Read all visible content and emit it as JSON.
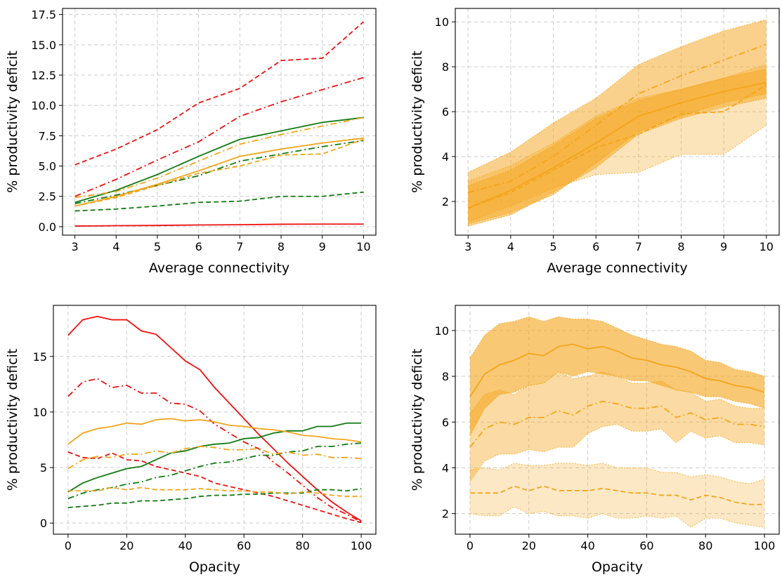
{
  "colors": {
    "red": "#ee1111",
    "green": "#117a11",
    "orange": "#f4a419"
  },
  "chart_data": [
    {
      "type": "line",
      "xlabel": "Average connectivity",
      "ylabel": "% productivity deficit",
      "xlim": [
        2.7,
        10.3
      ],
      "ylim": [
        -0.7,
        18.0
      ],
      "xticks": [
        3,
        4,
        5,
        6,
        7,
        8,
        9,
        10
      ],
      "yticks": [
        0.0,
        2.5,
        5.0,
        7.5,
        10.0,
        12.5,
        15.0,
        17.5
      ],
      "ytick_decimals": 1,
      "grid": true,
      "x": [
        3,
        4,
        5,
        6,
        7,
        8,
        9,
        10
      ],
      "series": [
        {
          "color": "red",
          "style": "dashed",
          "values": [
            5.1,
            6.4,
            8.0,
            10.2,
            11.4,
            13.7,
            13.9,
            16.9
          ]
        },
        {
          "color": "red",
          "style": "dashdot",
          "values": [
            2.5,
            3.9,
            5.5,
            7.0,
            9.1,
            10.3,
            11.3,
            12.3
          ]
        },
        {
          "color": "red",
          "style": "solid",
          "values": [
            0.05,
            0.08,
            0.1,
            0.14,
            0.16,
            0.2,
            0.21,
            0.21
          ]
        },
        {
          "color": "green",
          "style": "solid",
          "values": [
            2.0,
            3.0,
            4.3,
            5.8,
            7.2,
            7.9,
            8.6,
            9.0
          ]
        },
        {
          "color": "green",
          "style": "dashdot",
          "values": [
            1.9,
            2.6,
            3.4,
            4.2,
            5.4,
            6.0,
            6.6,
            7.1
          ]
        },
        {
          "color": "green",
          "style": "dashed",
          "values": [
            1.3,
            1.45,
            1.7,
            2.0,
            2.1,
            2.5,
            2.5,
            2.85
          ]
        },
        {
          "color": "orange",
          "style": "dashdot",
          "values": [
            2.4,
            2.9,
            4.0,
            5.4,
            6.8,
            7.6,
            8.3,
            9.0
          ]
        },
        {
          "color": "orange",
          "style": "solid",
          "values": [
            1.7,
            2.5,
            3.5,
            4.6,
            5.8,
            6.4,
            6.9,
            7.3
          ]
        },
        {
          "color": "orange",
          "style": "dashed",
          "values": [
            1.7,
            2.4,
            3.4,
            4.4,
            5.0,
            5.9,
            6.0,
            7.2
          ]
        }
      ]
    },
    {
      "type": "area",
      "xlabel": "Average connectivity",
      "ylabel": "% productivity deficit",
      "xlim": [
        2.7,
        10.3
      ],
      "ylim": [
        0.5,
        10.6
      ],
      "xticks": [
        3,
        4,
        5,
        6,
        7,
        8,
        9,
        10
      ],
      "yticks": [
        2,
        4,
        6,
        8,
        10
      ],
      "ytick_decimals": 0,
      "grid": true,
      "x": [
        3,
        4,
        5,
        6,
        7,
        8,
        9,
        10
      ],
      "bands": [
        {
          "lower": [
            0.9,
            1.4,
            2.4,
            3.5,
            5.0,
            5.7,
            6.2,
            6.6
          ],
          "upper": [
            3.3,
            4.2,
            5.5,
            6.6,
            8.1,
            8.9,
            9.6,
            10.1
          ],
          "opacity": 0.5
        },
        {
          "lower": [
            1.1,
            1.8,
            2.6,
            3.2,
            3.3,
            4.1,
            4.1,
            5.4
          ],
          "upper": [
            2.9,
            3.6,
            4.6,
            5.8,
            6.6,
            7.0,
            7.5,
            8.1
          ],
          "opacity": 0.3
        },
        {
          "lower": [
            1.0,
            1.5,
            2.3,
            3.7,
            5.1,
            5.8,
            6.4,
            6.8
          ],
          "upper": [
            2.7,
            3.4,
            4.5,
            5.7,
            6.5,
            7.0,
            7.5,
            7.9
          ],
          "opacity": 0.45
        }
      ],
      "series": [
        {
          "color": "orange",
          "style": "dashdot",
          "values": [
            2.4,
            2.9,
            4.0,
            5.4,
            6.8,
            7.6,
            8.3,
            9.0
          ]
        },
        {
          "color": "orange",
          "style": "solid",
          "values": [
            1.7,
            2.5,
            3.5,
            4.6,
            5.8,
            6.4,
            6.9,
            7.3
          ]
        },
        {
          "color": "orange",
          "style": "dashed",
          "values": [
            1.7,
            2.4,
            3.4,
            4.4,
            5.0,
            5.9,
            6.0,
            7.2
          ]
        }
      ]
    },
    {
      "type": "line",
      "xlabel": "Opacity",
      "ylabel": "% productivity deficit",
      "xlim": [
        -5,
        105
      ],
      "ylim": [
        -1.0,
        19.6
      ],
      "xticks": [
        0,
        20,
        40,
        60,
        80,
        100
      ],
      "yticks": [
        0,
        5,
        10,
        15
      ],
      "ytick_decimals": 0,
      "grid": true,
      "x": [
        0,
        5,
        10,
        15,
        20,
        25,
        30,
        35,
        40,
        45,
        50,
        55,
        60,
        65,
        70,
        75,
        80,
        85,
        90,
        95,
        100
      ],
      "series": [
        {
          "color": "red",
          "style": "solid",
          "values": [
            16.9,
            18.3,
            18.6,
            18.3,
            18.3,
            17.3,
            17.0,
            15.8,
            14.6,
            13.8,
            12.2,
            10.8,
            9.4,
            8.0,
            6.7,
            5.4,
            4.2,
            3.0,
            1.9,
            1.0,
            0.2
          ]
        },
        {
          "color": "red",
          "style": "dashdot",
          "values": [
            11.4,
            12.7,
            13.0,
            12.2,
            12.4,
            11.7,
            11.7,
            10.8,
            10.7,
            10.1,
            8.9,
            8.1,
            7.3,
            6.7,
            5.5,
            4.5,
            3.4,
            2.3,
            1.4,
            0.8,
            0.1
          ]
        },
        {
          "color": "red",
          "style": "dashed",
          "values": [
            6.4,
            5.9,
            5.8,
            6.3,
            5.7,
            5.6,
            5.1,
            4.8,
            4.5,
            4.2,
            3.6,
            3.3,
            3.0,
            2.7,
            2.4,
            2.0,
            1.6,
            1.2,
            0.8,
            0.4,
            0.05
          ]
        },
        {
          "color": "green",
          "style": "solid",
          "values": [
            2.8,
            3.6,
            4.1,
            4.5,
            4.9,
            5.1,
            5.7,
            6.3,
            6.5,
            6.9,
            7.1,
            7.2,
            7.6,
            7.7,
            8.1,
            8.3,
            8.3,
            8.7,
            8.7,
            9.0,
            9.0
          ]
        },
        {
          "color": "green",
          "style": "dashdot",
          "values": [
            2.2,
            2.7,
            3.0,
            3.2,
            3.5,
            3.7,
            4.1,
            4.3,
            4.7,
            5.1,
            5.4,
            5.5,
            5.8,
            6.1,
            6.1,
            6.4,
            6.5,
            6.9,
            6.9,
            7.1,
            7.2
          ]
        },
        {
          "color": "green",
          "style": "dashed",
          "values": [
            1.4,
            1.5,
            1.6,
            1.8,
            1.8,
            2.0,
            2.0,
            2.1,
            2.2,
            2.4,
            2.5,
            2.5,
            2.6,
            2.6,
            2.7,
            2.7,
            2.7,
            3.0,
            3.0,
            2.9,
            3.1
          ]
        },
        {
          "color": "orange",
          "style": "solid",
          "values": [
            7.1,
            8.1,
            8.5,
            8.7,
            9.0,
            8.9,
            9.3,
            9.4,
            9.2,
            9.3,
            9.1,
            8.8,
            8.7,
            8.5,
            8.4,
            8.2,
            7.9,
            7.8,
            7.6,
            7.5,
            7.3
          ]
        },
        {
          "color": "orange",
          "style": "dashdot",
          "values": [
            4.9,
            5.7,
            6.0,
            5.9,
            6.2,
            6.2,
            6.5,
            6.3,
            6.7,
            6.9,
            6.8,
            6.6,
            6.6,
            6.7,
            6.2,
            6.4,
            6.1,
            6.2,
            5.9,
            5.9,
            5.8
          ]
        },
        {
          "color": "orange",
          "style": "dashed",
          "values": [
            2.9,
            2.9,
            2.9,
            3.2,
            3.0,
            3.2,
            3.0,
            3.0,
            3.0,
            3.1,
            3.0,
            2.9,
            2.9,
            2.8,
            2.8,
            2.6,
            2.8,
            2.7,
            2.5,
            2.4,
            2.4
          ]
        }
      ]
    },
    {
      "type": "area",
      "xlabel": "Opacity",
      "ylabel": "% productivity deficit",
      "xlim": [
        -5,
        105
      ],
      "ylim": [
        1.1,
        11.1
      ],
      "xticks": [
        0,
        20,
        40,
        60,
        80,
        100
      ],
      "yticks": [
        2,
        4,
        6,
        8,
        10
      ],
      "ytick_decimals": 0,
      "grid": true,
      "x": [
        0,
        5,
        10,
        15,
        20,
        25,
        30,
        35,
        40,
        45,
        50,
        55,
        60,
        65,
        70,
        75,
        80,
        85,
        90,
        95,
        100
      ],
      "bands": [
        {
          "lower": [
            5.4,
            6.6,
            7.2,
            7.3,
            7.6,
            7.7,
            8.2,
            8.0,
            8.2,
            8.1,
            8.0,
            7.8,
            7.8,
            7.6,
            7.4,
            7.3,
            7.1,
            7.1,
            6.9,
            6.8,
            6.6
          ],
          "upper": [
            8.8,
            9.8,
            10.3,
            10.4,
            10.6,
            10.4,
            10.6,
            10.5,
            10.5,
            10.4,
            10.1,
            9.8,
            9.6,
            9.4,
            9.3,
            9.1,
            8.7,
            8.6,
            8.3,
            8.2,
            8.0
          ],
          "opacity": 0.6
        },
        {
          "lower": [
            3.4,
            4.3,
            4.6,
            4.6,
            4.8,
            4.7,
            4.9,
            4.9,
            5.5,
            5.8,
            5.9,
            5.6,
            5.6,
            5.7,
            5.1,
            5.6,
            5.3,
            5.4,
            5.1,
            5.1,
            5.0
          ],
          "upper": [
            6.4,
            7.2,
            7.4,
            7.2,
            7.6,
            7.7,
            8.2,
            7.9,
            8.0,
            8.2,
            8.0,
            7.7,
            7.7,
            7.8,
            7.4,
            7.3,
            6.9,
            7.0,
            6.7,
            6.6,
            6.6
          ],
          "opacity": 0.4
        },
        {
          "lower": [
            2.0,
            1.9,
            1.9,
            2.3,
            2.0,
            2.1,
            1.9,
            1.9,
            1.8,
            2.0,
            1.8,
            1.8,
            1.9,
            1.8,
            1.9,
            1.4,
            1.8,
            1.8,
            1.6,
            1.5,
            1.4
          ],
          "upper": [
            3.9,
            4.0,
            3.9,
            4.2,
            4.1,
            4.1,
            4.2,
            4.2,
            4.1,
            4.2,
            4.0,
            4.0,
            4.0,
            3.8,
            3.8,
            3.6,
            3.7,
            3.6,
            3.4,
            3.3,
            3.5
          ],
          "opacity": 0.25
        }
      ],
      "series": [
        {
          "color": "orange",
          "style": "solid",
          "values": [
            7.1,
            8.1,
            8.5,
            8.7,
            9.0,
            8.9,
            9.3,
            9.4,
            9.2,
            9.3,
            9.1,
            8.8,
            8.7,
            8.5,
            8.4,
            8.2,
            7.9,
            7.8,
            7.6,
            7.5,
            7.3
          ]
        },
        {
          "color": "orange",
          "style": "dashdot",
          "values": [
            4.9,
            5.7,
            6.0,
            5.9,
            6.2,
            6.2,
            6.5,
            6.3,
            6.7,
            6.9,
            6.8,
            6.6,
            6.6,
            6.7,
            6.2,
            6.4,
            6.1,
            6.2,
            5.9,
            5.9,
            5.8
          ]
        },
        {
          "color": "orange",
          "style": "dashed",
          "values": [
            2.9,
            2.9,
            2.9,
            3.2,
            3.0,
            3.2,
            3.0,
            3.0,
            3.0,
            3.1,
            3.0,
            2.9,
            2.9,
            2.8,
            2.8,
            2.6,
            2.8,
            2.7,
            2.5,
            2.4,
            2.4
          ]
        }
      ]
    }
  ]
}
